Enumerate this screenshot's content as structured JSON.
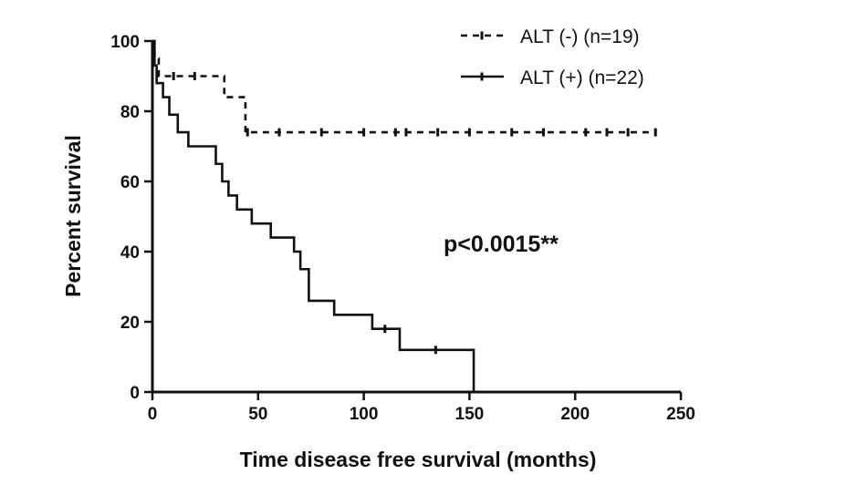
{
  "chart_data": {
    "type": "line",
    "subtype": "kaplan-meier step",
    "title": "",
    "xlabel": "Time disease free survival (months)",
    "ylabel": "Percent survival",
    "xlim": [
      0,
      250
    ],
    "ylim": [
      0,
      100
    ],
    "x_ticks": [
      0,
      50,
      100,
      150,
      200,
      250
    ],
    "y_ticks": [
      0,
      20,
      40,
      60,
      80,
      100
    ],
    "grid": false,
    "legend_position": "top-right",
    "annotation": "p<0.0015**",
    "series": [
      {
        "name": "ALT (-) (n=19)",
        "line_style": "dashed",
        "color": "#111111",
        "steps": [
          [
            0,
            100
          ],
          [
            1,
            95
          ],
          [
            3,
            90
          ],
          [
            32,
            90
          ],
          [
            34,
            84
          ],
          [
            42,
            84
          ],
          [
            44,
            74
          ],
          [
            238,
            74
          ]
        ],
        "censored": [
          [
            10,
            90
          ],
          [
            20,
            90
          ],
          [
            45,
            74
          ],
          [
            60,
            74
          ],
          [
            80,
            74
          ],
          [
            100,
            74
          ],
          [
            115,
            74
          ],
          [
            120,
            74
          ],
          [
            135,
            74
          ],
          [
            150,
            74
          ],
          [
            170,
            74
          ],
          [
            185,
            74
          ],
          [
            205,
            74
          ],
          [
            215,
            74
          ],
          [
            225,
            74
          ],
          [
            238,
            74
          ]
        ]
      },
      {
        "name": "ALT (+) (n=22)",
        "line_style": "solid",
        "color": "#111111",
        "steps": [
          [
            0,
            100
          ],
          [
            1,
            93
          ],
          [
            2,
            88
          ],
          [
            5,
            84
          ],
          [
            8,
            79
          ],
          [
            12,
            74
          ],
          [
            17,
            70
          ],
          [
            30,
            65
          ],
          [
            33,
            60
          ],
          [
            36,
            56
          ],
          [
            40,
            52
          ],
          [
            47,
            48
          ],
          [
            56,
            44
          ],
          [
            67,
            40
          ],
          [
            70,
            35
          ],
          [
            74,
            26
          ],
          [
            86,
            22
          ],
          [
            104,
            18
          ],
          [
            117,
            12
          ],
          [
            152,
            0
          ]
        ],
        "censored": [
          [
            110,
            18
          ],
          [
            134,
            12
          ]
        ]
      }
    ]
  }
}
